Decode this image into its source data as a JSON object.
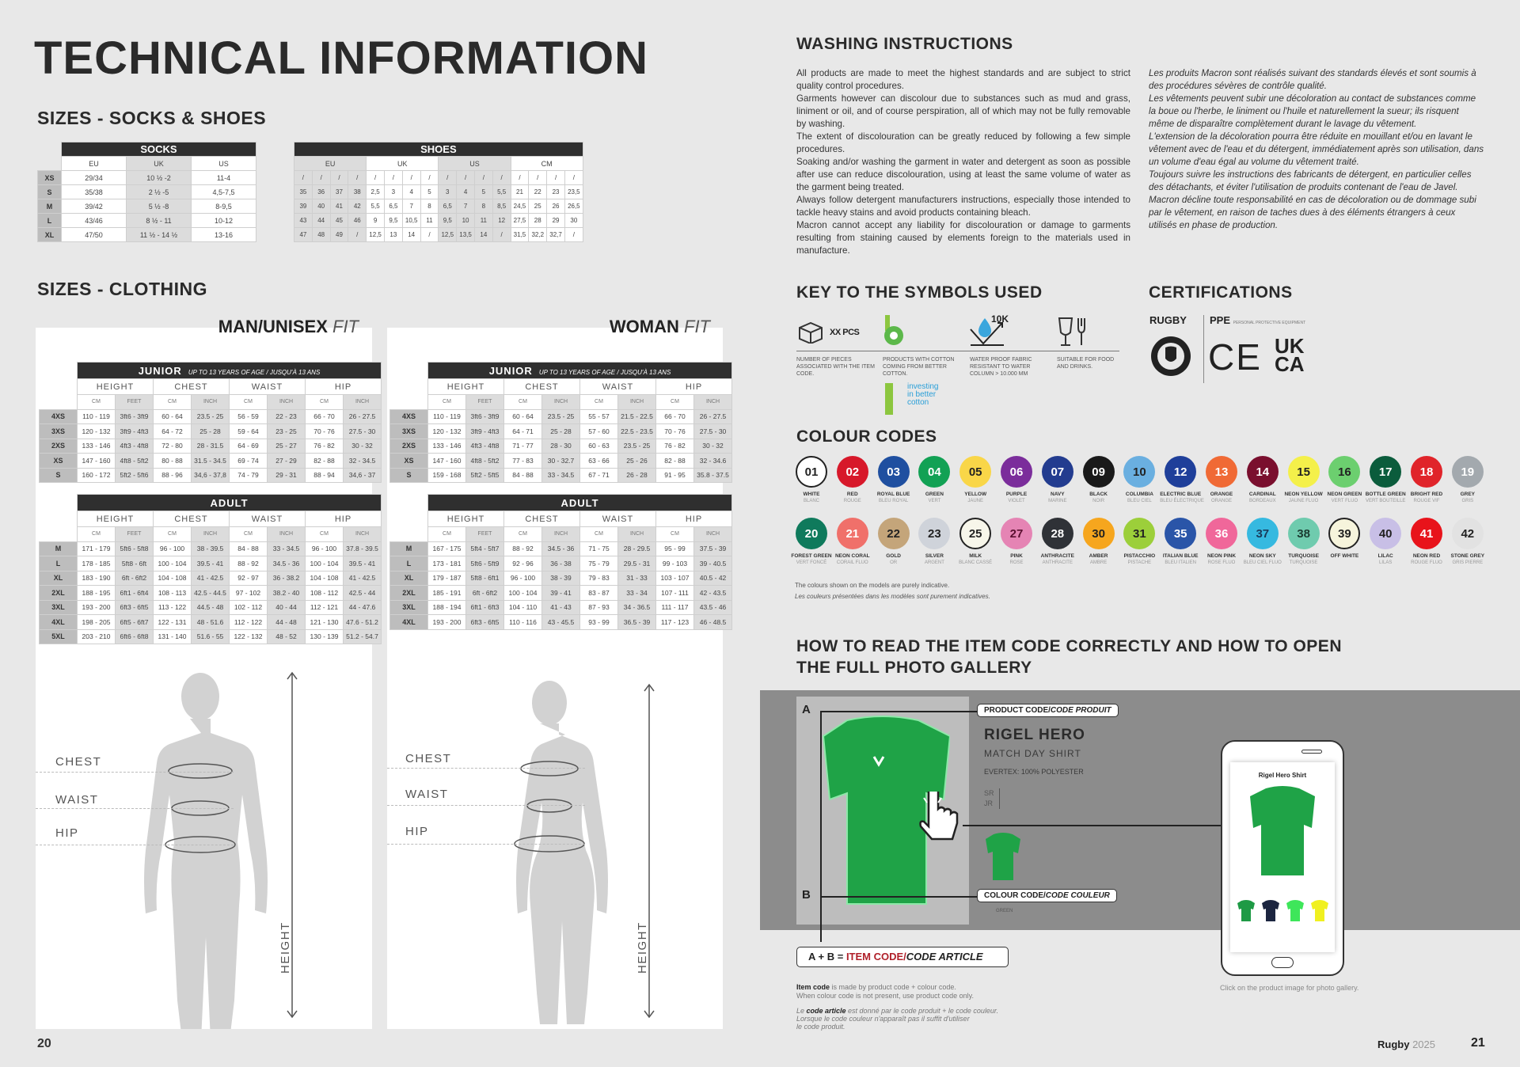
{
  "title": "TECHNICAL INFORMATION",
  "socks_shoes": {
    "heading": "SIZES - SOCKS & SHOES",
    "socks": {
      "title": "SOCKS",
      "columns": [
        "EU",
        "UK",
        "US"
      ],
      "rows": [
        [
          "XS",
          "29/34",
          "10 ½ -2",
          "11-4"
        ],
        [
          "S",
          "35/38",
          "2 ½ -5",
          "4,5-7,5"
        ],
        [
          "M",
          "39/42",
          "5 ½ -8",
          "8-9,5"
        ],
        [
          "L",
          "43/46",
          "8 ½ - 11",
          "10-12"
        ],
        [
          "XL",
          "47/50",
          "11 ½ - 14 ½",
          "13-16"
        ]
      ]
    },
    "shoes": {
      "title": "SHOES",
      "columns": [
        "EU",
        "UK",
        "US",
        "CM"
      ],
      "rows": [
        [
          "/",
          "/",
          "/",
          "/",
          "/",
          "/",
          "/",
          "/",
          "/",
          "/",
          "/",
          "/",
          "/",
          "/",
          "/",
          "/"
        ],
        [
          "35",
          "36",
          "37",
          "38",
          "2,5",
          "3",
          "4",
          "5",
          "3",
          "4",
          "5",
          "5,5",
          "21",
          "22",
          "23",
          "23,5"
        ],
        [
          "39",
          "40",
          "41",
          "42",
          "5,5",
          "6,5",
          "7",
          "8",
          "6,5",
          "7",
          "8",
          "8,5",
          "24,5",
          "25",
          "26",
          "26,5"
        ],
        [
          "43",
          "44",
          "45",
          "46",
          "9",
          "9,5",
          "10,5",
          "11",
          "9,5",
          "10",
          "11",
          "12",
          "27,5",
          "28",
          "29",
          "30"
        ],
        [
          "47",
          "48",
          "49",
          "/",
          "12,5",
          "13",
          "14",
          "/",
          "12,5",
          "13,5",
          "14",
          "/",
          "31,5",
          "32,2",
          "32,7",
          "/"
        ]
      ]
    }
  },
  "clothing": {
    "heading": "SIZES - CLOTHING",
    "groups": [
      "HEIGHT",
      "CHEST",
      "WAIST",
      "HIP"
    ],
    "units": [
      "CM",
      "FEET",
      "CM",
      "INCH",
      "CM",
      "INCH",
      "CM",
      "INCH"
    ],
    "junior_title": "JUNIOR",
    "junior_sub": "UP TO 13 YEARS OF AGE / JUSQU'À 13 ANS",
    "adult_title": "ADULT",
    "man": {
      "fit_bold": "MAN/UNISEX",
      "fit_italic": "FIT",
      "junior": [
        [
          "4XS",
          "110 - 119",
          "3ft6 - 3ft9",
          "60 - 64",
          "23.5 - 25",
          "56 - 59",
          "22 - 23",
          "66 - 70",
          "26 - 27.5"
        ],
        [
          "3XS",
          "120 - 132",
          "3ft9 - 4ft3",
          "64 - 72",
          "25 - 28",
          "59 - 64",
          "23 - 25",
          "70 - 76",
          "27.5 - 30"
        ],
        [
          "2XS",
          "133 - 146",
          "4ft3 - 4ft8",
          "72 - 80",
          "28 - 31.5",
          "64 - 69",
          "25 - 27",
          "76 - 82",
          "30 - 32"
        ],
        [
          "XS",
          "147 - 160",
          "4ft8 - 5ft2",
          "80 - 88",
          "31.5 - 34.5",
          "69 - 74",
          "27 - 29",
          "82 - 88",
          "32 - 34.5"
        ],
        [
          "S",
          "160 - 172",
          "5ft2 - 5ft6",
          "88 - 96",
          "34,6 - 37,8",
          "74 - 79",
          "29 - 31",
          "88 - 94",
          "34,6 - 37"
        ]
      ],
      "adult": [
        [
          "M",
          "171 - 179",
          "5ft6 - 5ft8",
          "96 - 100",
          "38 - 39.5",
          "84 - 88",
          "33 - 34.5",
          "96 - 100",
          "37.8 - 39.5"
        ],
        [
          "L",
          "178 - 185",
          "5ft8 - 6ft",
          "100 - 104",
          "39.5 - 41",
          "88 - 92",
          "34.5 - 36",
          "100 - 104",
          "39.5 - 41"
        ],
        [
          "XL",
          "183 - 190",
          "6ft - 6ft2",
          "104 - 108",
          "41 - 42.5",
          "92 - 97",
          "36 - 38.2",
          "104 - 108",
          "41 - 42.5"
        ],
        [
          "2XL",
          "188 - 195",
          "6ft1 - 6ft4",
          "108 - 113",
          "42.5 - 44.5",
          "97 - 102",
          "38.2 - 40",
          "108 - 112",
          "42.5 - 44"
        ],
        [
          "3XL",
          "193 - 200",
          "6ft3 - 6ft5",
          "113 - 122",
          "44.5 - 48",
          "102 - 112",
          "40 - 44",
          "112 - 121",
          "44 - 47.6"
        ],
        [
          "4XL",
          "198 - 205",
          "6ft5 - 6ft7",
          "122 - 131",
          "48 - 51.6",
          "112 - 122",
          "44 - 48",
          "121 - 130",
          "47.6 - 51.2"
        ],
        [
          "5XL",
          "203 - 210",
          "6ft6 - 6ft8",
          "131 - 140",
          "51.6 - 55",
          "122 - 132",
          "48 - 52",
          "130 - 139",
          "51.2 - 54.7"
        ]
      ]
    },
    "woman": {
      "fit_bold": "WOMAN",
      "fit_italic": "FIT",
      "junior": [
        [
          "4XS",
          "110 - 119",
          "3ft6 - 3ft9",
          "60 - 64",
          "23.5 - 25",
          "55 - 57",
          "21.5 - 22.5",
          "66 - 70",
          "26 - 27.5"
        ],
        [
          "3XS",
          "120 - 132",
          "3ft9 - 4ft3",
          "64 - 71",
          "25 - 28",
          "57 - 60",
          "22.5 - 23.5",
          "70 - 76",
          "27.5 - 30"
        ],
        [
          "2XS",
          "133 - 146",
          "4ft3 - 4ft8",
          "71 - 77",
          "28 - 30",
          "60 - 63",
          "23.5 - 25",
          "76 - 82",
          "30 - 32"
        ],
        [
          "XS",
          "147 - 160",
          "4ft8 - 5ft2",
          "77 - 83",
          "30 - 32.7",
          "63 - 66",
          "25 - 26",
          "82 - 88",
          "32 - 34.6"
        ],
        [
          "S",
          "159 - 168",
          "5ft2 - 5ft5",
          "84 - 88",
          "33 - 34.5",
          "67 - 71",
          "26 - 28",
          "91 - 95",
          "35.8 - 37.5"
        ]
      ],
      "adult": [
        [
          "M",
          "167 - 175",
          "5ft4 - 5ft7",
          "88 - 92",
          "34.5 - 36",
          "71 - 75",
          "28 - 29.5",
          "95 - 99",
          "37.5 - 39"
        ],
        [
          "L",
          "173 - 181",
          "5ft6 - 5ft9",
          "92 - 96",
          "36 - 38",
          "75 - 79",
          "29.5 - 31",
          "99 - 103",
          "39 - 40.5"
        ],
        [
          "XL",
          "179 - 187",
          "5ft8 - 6ft1",
          "96 - 100",
          "38 - 39",
          "79 - 83",
          "31 - 33",
          "103 - 107",
          "40.5 - 42"
        ],
        [
          "2XL",
          "185 - 191",
          "6ft - 6ft2",
          "100 - 104",
          "39 - 41",
          "83 - 87",
          "33 - 34",
          "107 - 111",
          "42 - 43.5"
        ],
        [
          "3XL",
          "188 - 194",
          "6ft1 - 6ft3",
          "104 - 110",
          "41 - 43",
          "87 - 93",
          "34 - 36.5",
          "111 - 117",
          "43.5 - 46"
        ],
        [
          "4XL",
          "193 - 200",
          "6ft3 - 6ft5",
          "110 - 116",
          "43 - 45.5",
          "93 - 99",
          "36.5 - 39",
          "117 - 123",
          "46 - 48.5"
        ]
      ]
    },
    "measures": {
      "chest": "CHEST",
      "waist": "WAIST",
      "hip": "HIP",
      "height": "HEIGHT"
    }
  },
  "washing": {
    "heading": "WASHING INSTRUCTIONS",
    "en": [
      "All products are made to meet the highest standards and are subject to strict quality control procedures.",
      "Garments however can discolour due to substances such as mud and grass, liniment or oil, and of course perspiration, all of which may not be fully removable by washing.",
      "The extent of discolouration can be greatly reduced by following a few simple procedures.",
      "Soaking and/or washing the garment in water and detergent as soon as possible after use can reduce discolouration, using at least the same volume of water as the garment being treated.",
      "Always follow detergent manufacturers instructions, especially those intended to tackle heavy stains and avoid products containing bleach.",
      "Macron cannot accept any liability for discolouration or damage to garments resulting from staining caused by elements foreign to the materials used in manufacture."
    ],
    "fr": [
      "Les produits Macron sont réalisés suivant des standards élevés et sont soumis à des procédures sévères de contrôle qualité.",
      "Les vêtements peuvent subir une décoloration au contact de substances comme la boue ou l'herbe, le liniment ou l'huile et naturellement la sueur; ils risquent même de disparaître complètement durant le lavage du vêtement.",
      "L'extension de la décoloration pourra être réduite en mouillant et/ou en lavant le vêtement avec de l'eau et du détergent, immédiatement après son utilisation, dans un volume d'eau égal au volume du vêtement traité.",
      "Toujours suivre les instructions des fabricants de détergent, en particulier celles des détachants, et éviter l'utilisation de produits contenant de l'eau de Javel.",
      "Macron décline toute responsabilité en cas de décoloration ou de dommage subi par le vêtement, en raison de taches dues à des éléments étrangers à ceux utilisés en phase de production."
    ]
  },
  "symbols": {
    "heading": "KEY TO THE SYMBOLS USED",
    "items": [
      {
        "icon": "box-icon",
        "label": "XX PCS",
        "desc": "NUMBER OF PIECES ASSOCIATED WITH THE ITEM CODE."
      },
      {
        "icon": "better-cotton-icon",
        "label": "",
        "desc": "PRODUCTS WITH COTTON COMING FROM BETTER COTTON."
      },
      {
        "icon": "water-proof-icon",
        "label": "10K",
        "desc": "WATER PROOF FABRIC RESISTANT TO WATER COLUMN > 10.000 MM"
      },
      {
        "icon": "food-safe-icon",
        "label": "",
        "desc": "SUITABLE FOR FOOD AND DRINKS."
      }
    ],
    "better_cotton_logo": "investing in better cotton"
  },
  "certifications": {
    "heading": "CERTIFICATIONS",
    "rugby": "RUGBY",
    "ppe": "PPE",
    "ppe_sub": "PERSONAL PROTECTIVE EQUIPMENT",
    "ce": "CE",
    "ukca": "UK CA"
  },
  "colours": {
    "heading": "COLOUR CODES",
    "items": [
      {
        "code": "01",
        "name": "WHITE",
        "fr": "BLANC",
        "hex": "#ffffff",
        "text": "#222222",
        "ring": true
      },
      {
        "code": "02",
        "name": "RED",
        "fr": "ROUGE",
        "hex": "#d7182a",
        "text": "#ffffff"
      },
      {
        "code": "03",
        "name": "ROYAL BLUE",
        "fr": "BLEU ROYAL",
        "hex": "#1f4fa0",
        "text": "#ffffff"
      },
      {
        "code": "04",
        "name": "GREEN",
        "fr": "VERT",
        "hex": "#12a154",
        "text": "#ffffff"
      },
      {
        "code": "05",
        "name": "YELLOW",
        "fr": "JAUNE",
        "hex": "#f9d648",
        "text": "#222222"
      },
      {
        "code": "06",
        "name": "PURPLE",
        "fr": "VIOLET",
        "hex": "#7b2d9b",
        "text": "#ffffff"
      },
      {
        "code": "07",
        "name": "NAVY",
        "fr": "MARINE",
        "hex": "#233c8f",
        "text": "#ffffff"
      },
      {
        "code": "09",
        "name": "BLACK",
        "fr": "NOIR",
        "hex": "#1a1a1a",
        "text": "#ffffff"
      },
      {
        "code": "10",
        "name": "COLUMBIA",
        "fr": "BLEU CIEL",
        "hex": "#6aafe0",
        "text": "#222222"
      },
      {
        "code": "12",
        "name": "ELECTRIC BLUE",
        "fr": "BLEU ÉLECTRIQUE",
        "hex": "#1f3f9a",
        "text": "#ffffff"
      },
      {
        "code": "13",
        "name": "ORANGE",
        "fr": "ORANGE",
        "hex": "#f06a35",
        "text": "#ffffff"
      },
      {
        "code": "14",
        "name": "CARDINAL",
        "fr": "BORDEAUX",
        "hex": "#7a0f2e",
        "text": "#ffffff"
      },
      {
        "code": "15",
        "name": "NEON YELLOW",
        "fr": "JAUNE FLUO",
        "hex": "#f4f04a",
        "text": "#222222"
      },
      {
        "code": "16",
        "name": "NEON GREEN",
        "fr": "VERT FLUO",
        "hex": "#6ccf6f",
        "text": "#222222"
      },
      {
        "code": "17",
        "name": "BOTTLE GREEN",
        "fr": "VERT BOUTEILLE",
        "hex": "#0b5c3c",
        "text": "#ffffff"
      },
      {
        "code": "18",
        "name": "BRIGHT RED",
        "fr": "ROUGE VIF",
        "hex": "#e0242a",
        "text": "#ffffff"
      },
      {
        "code": "19",
        "name": "GREY",
        "fr": "GRIS",
        "hex": "#a3a9ae",
        "text": "#ffffff"
      },
      {
        "code": "20",
        "name": "FOREST GREEN",
        "fr": "VERT FONCÉ",
        "hex": "#0f7a5c",
        "text": "#ffffff"
      },
      {
        "code": "21",
        "name": "NEON CORAL",
        "fr": "CORAIL FLUO",
        "hex": "#f0706a",
        "text": "#ffffff"
      },
      {
        "code": "22",
        "name": "GOLD",
        "fr": "OR",
        "hex": "#c4a57a",
        "text": "#222222"
      },
      {
        "code": "23",
        "name": "SILVER",
        "fr": "ARGENT",
        "hex": "#cfd3da",
        "text": "#222222"
      },
      {
        "code": "25",
        "name": "MILK",
        "fr": "BLANC CASSÉ",
        "hex": "#f7f6ea",
        "text": "#222222",
        "ring": true
      },
      {
        "code": "27",
        "name": "PINK",
        "fr": "ROSE",
        "hex": "#e584b4",
        "text": "#5a1030"
      },
      {
        "code": "28",
        "name": "ANTHRACITE",
        "fr": "ANTHRACITE",
        "hex": "#2f3237",
        "text": "#ffffff"
      },
      {
        "code": "30",
        "name": "AMBER",
        "fr": "AMBRE",
        "hex": "#f6a61e",
        "text": "#222222"
      },
      {
        "code": "31",
        "name": "PISTACCHIO",
        "fr": "PISTACHE",
        "hex": "#9ccf3a",
        "text": "#222222"
      },
      {
        "code": "35",
        "name": "ITALIAN BLUE",
        "fr": "BLEU ITALIEN",
        "hex": "#2a55a8",
        "text": "#ffffff"
      },
      {
        "code": "36",
        "name": "NEON PINK",
        "fr": "ROSE FLUO",
        "hex": "#f0679a",
        "text": "#ffffff"
      },
      {
        "code": "37",
        "name": "NEON SKY",
        "fr": "BLEU CIEL FLUO",
        "hex": "#36b9e0",
        "text": "#1a3a5a"
      },
      {
        "code": "38",
        "name": "TURQUOISE",
        "fr": "TURQUOISE",
        "hex": "#6fcbae",
        "text": "#1a3a30"
      },
      {
        "code": "39",
        "name": "OFF WHITE",
        "fr": "",
        "hex": "#f6f4dc",
        "text": "#222222",
        "ring": true
      },
      {
        "code": "40",
        "name": "LILAC",
        "fr": "LILAS",
        "hex": "#c8bfe6",
        "text": "#222222"
      },
      {
        "code": "41",
        "name": "NEON RED",
        "fr": "ROUGE FLUO",
        "hex": "#e8131b",
        "text": "#ffffff"
      },
      {
        "code": "42",
        "name": "STONE GREY",
        "fr": "GRIS PIERRE",
        "hex": "#e2e2e2",
        "text": "#222222"
      }
    ],
    "note_en": "The colours shown on the models are purely indicative.",
    "note_fr": "Les couleurs présentées dans les modèles sont purement indicatives."
  },
  "item_code": {
    "heading_line1": "HOW TO READ THE ITEM CODE CORRECTLY AND HOW TO OPEN",
    "heading_line2": "THE FULL PHOTO GALLERY",
    "marker_a": "A",
    "marker_b": "B",
    "product_code_tag": "PRODUCT CODE/",
    "product_code_tag_fr": "CODE PRODUIT",
    "colour_code_tag": "COLOUR CODE/",
    "colour_code_tag_fr": "CODE COULEUR",
    "product_name": "RIGEL HERO",
    "product_type": "MATCH DAY SHIRT",
    "material": "EVERTEX: 100% POLYESTER",
    "size_sr": "SR",
    "size_jr": "JR",
    "colour_name": "GREEN",
    "formula_prefix": "A + B = ",
    "formula_item": "ITEM CODE/",
    "formula_fr": "CODE ARTICLE",
    "expl_en_bold": "Item code",
    "expl_en": " is made by product code + colour code.",
    "expl_en2": "When colour code is not present, use product code only.",
    "expl_fr_pre": "Le ",
    "expl_fr_bold": "code article",
    "expl_fr": " est donné par le code produit + le code couleur.",
    "expl_fr2": "Lorsque le code couleur n'apparaît pas il suffit d'utiliser",
    "expl_fr3": "le code produit.",
    "phone_title": "Rigel Hero Shirt",
    "phone_swatch_colours": [
      "#1e9a45",
      "#1c2540",
      "#3ee65a",
      "#f0f020"
    ],
    "phone_caption": "Click on the product image for photo gallery."
  },
  "footer": {
    "left_page": "20",
    "brand": "Rugby",
    "year": "2025",
    "right_page": "21"
  }
}
